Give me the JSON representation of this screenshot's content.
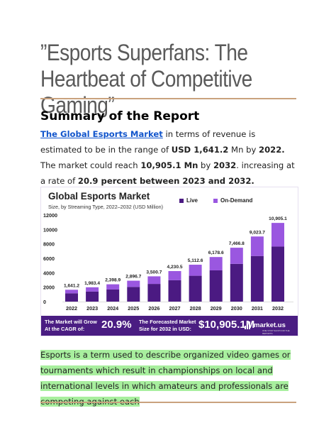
{
  "title": "”Esports Superfans: The Heartbeat of Competitive Gaming”",
  "summary_heading": "Summary of the Report",
  "paragraph": {
    "link_text": "The Global Esports Market",
    "t1": " in terms of revenue is estimated to be in the range of ",
    "b1": "USD 1,641.2",
    "t2": " Mn by ",
    "b2": "2022.",
    "t3": " The market could reach ",
    "b3": "10,905.1 Mn",
    "t4": " by ",
    "b4": "2032",
    "t5": ". increasing at a rate of ",
    "b5": "20.9 percent between 2023 and 2032."
  },
  "chart_data": {
    "type": "bar",
    "title": "Global Esports Market",
    "subtitle": "Size, by Streaming Type, 2022–2032 (USD Million)",
    "categories": [
      "2022",
      "2023",
      "2024",
      "2025",
      "2026",
      "2027",
      "2028",
      "2029",
      "2030",
      "2031",
      "2032"
    ],
    "totals": [
      1641.2,
      1983.4,
      2398.9,
      2896.7,
      3500.7,
      4230.5,
      5112.6,
      6178.6,
      7466.8,
      9023.7,
      10905.1
    ],
    "total_labels": [
      "1,641.2",
      "1,983.4",
      "2,398.9",
      "2,896.7",
      "3,500.7",
      "4,230.5",
      "5,112.6",
      "6,178.6",
      "7,466.8",
      "9,023.7",
      "10,905.1"
    ],
    "series": [
      {
        "name": "Live",
        "color": "#4b1a82",
        "values": [
          1150,
          1390,
          1680,
          2030,
          2450,
          2960,
          3580,
          4330,
          5230,
          6320,
          7630
        ]
      },
      {
        "name": "On-Demand",
        "color": "#9a57e0",
        "values": [
          491.2,
          593.4,
          718.9,
          866.7,
          1050.7,
          1270.5,
          1532.6,
          1848.6,
          2236.8,
          2703.7,
          3275.1
        ]
      }
    ],
    "yticks": [
      "12000",
      "10000",
      "8000",
      "6000",
      "4000",
      "2000",
      "0"
    ],
    "ylim": [
      0,
      12000
    ],
    "legend_position": "top-right",
    "footer": {
      "left": "The Market will Grow At the CAGR of:",
      "cagr": "20.9%",
      "mid": "The Forecasted Market Size for 2032 in USD:",
      "value": "$10,905.1M",
      "logo": "market.us",
      "logo_sub": "ONE STOP SHOP FOR THE REPORTS"
    }
  },
  "green_text": "Esports is a term used to describe organized video games or tournaments which result in championships on local and international levels in which amateurs and professionals are competing against each"
}
